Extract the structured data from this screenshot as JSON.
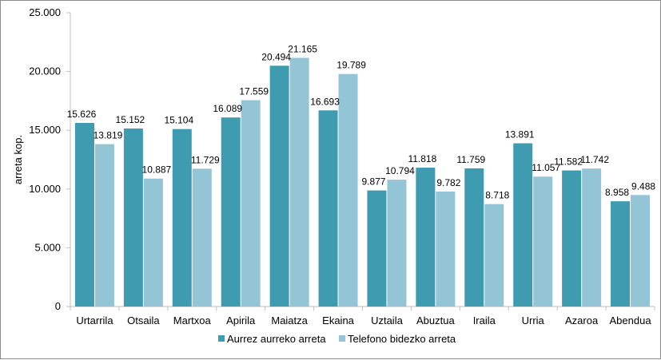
{
  "chart_data": {
    "type": "bar",
    "title": "",
    "xlabel": "",
    "ylabel": "arreta kop.",
    "ylim": [
      0,
      25000
    ],
    "yticks": [
      0,
      5000,
      10000,
      15000,
      20000,
      25000
    ],
    "ytick_labels": [
      "0",
      "5.000",
      "10.000",
      "15.000",
      "20.000",
      "25.000"
    ],
    "categories": [
      "Urtarrila",
      "Otsaila",
      "Martxoa",
      "Apirila",
      "Maiatza",
      "Ekaina",
      "Uztaila",
      "Abuztua",
      "Iraila",
      "Urria",
      "Azaroa",
      "Abendua"
    ],
    "series": [
      {
        "name": "Aurrez aurreko arreta",
        "color": "#3f9bb0",
        "values": [
          15626,
          15152,
          15104,
          16089,
          20494,
          16693,
          9877,
          11818,
          11759,
          13891,
          11582,
          8958
        ],
        "labels": [
          "15.626",
          "15.152",
          "15.104",
          "16.089",
          "20.494",
          "16.693",
          "9.877",
          "11.818",
          "11.759",
          "13.891",
          "11.582",
          "8.958"
        ]
      },
      {
        "name": "Telefono bidezko arreta",
        "color": "#93c5d6",
        "values": [
          13819,
          10887,
          11729,
          17559,
          21165,
          19789,
          10794,
          9782,
          8718,
          11057,
          11742,
          9488
        ],
        "labels": [
          "13.819",
          "10.887",
          "11.729",
          "17.559",
          "21.165",
          "19.789",
          "10.794",
          "9.782",
          "8.718",
          "11.057",
          "11.742",
          "9.488"
        ]
      }
    ],
    "grid": false,
    "legend_position": "bottom"
  }
}
